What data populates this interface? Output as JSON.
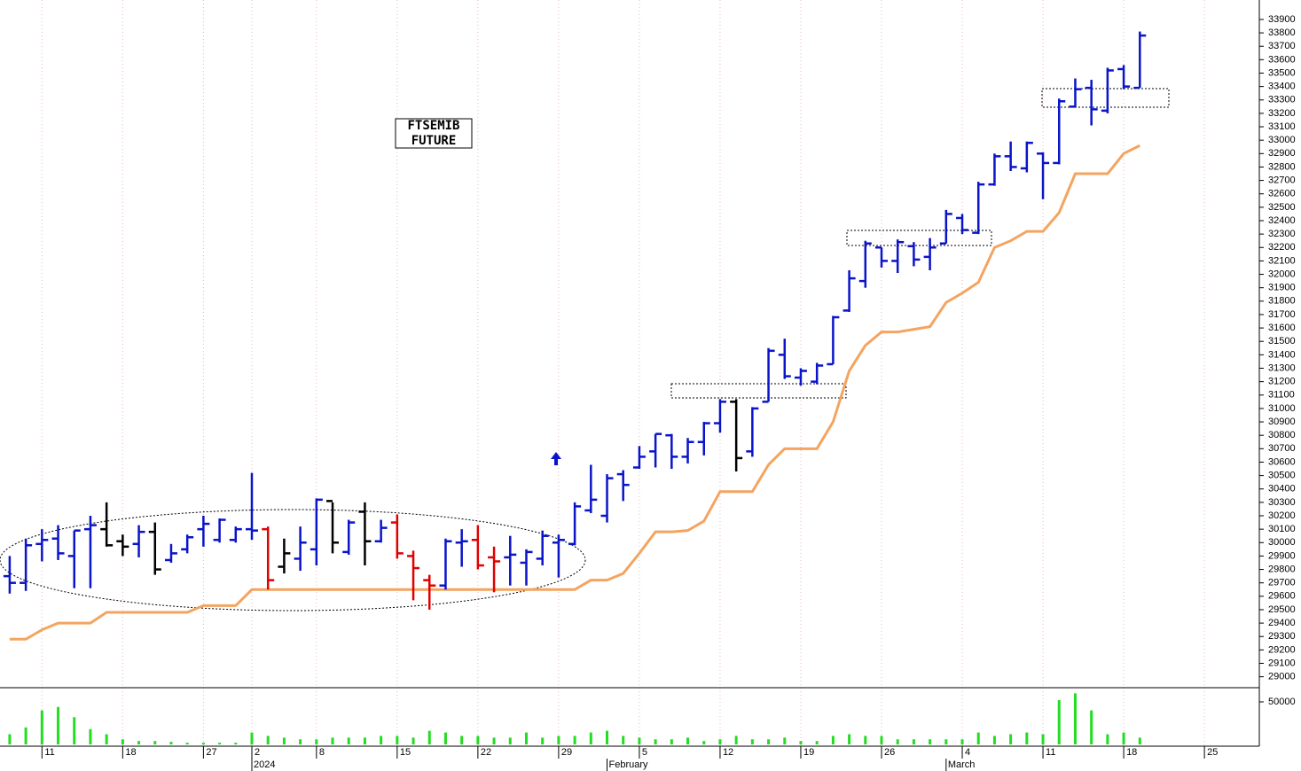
{
  "chart_data": [
    {
      "type": "ohlc",
      "title_lines": [
        "FTSEMIB",
        "FUTURE"
      ],
      "xlim": [
        -0.6,
        77.4
      ],
      "ylim": [
        28925,
        34045
      ],
      "xticks": [
        {
          "value": 2,
          "label": "11"
        },
        {
          "value": 7,
          "label": "18"
        },
        {
          "value": 12,
          "label": "27"
        },
        {
          "value": 15,
          "label": "2"
        },
        {
          "value": 19,
          "label": "8"
        },
        {
          "value": 24,
          "label": "15"
        },
        {
          "value": 29,
          "label": "22"
        },
        {
          "value": 34,
          "label": "29"
        },
        {
          "value": 39,
          "label": "5"
        },
        {
          "value": 44,
          "label": "12"
        },
        {
          "value": 49,
          "label": "19"
        },
        {
          "value": 54,
          "label": "26"
        },
        {
          "value": 59,
          "label": "4"
        },
        {
          "value": 64,
          "label": "11"
        },
        {
          "value": 69,
          "label": "18"
        },
        {
          "value": 74,
          "label": "25"
        }
      ],
      "period_labels": [
        {
          "value": 15,
          "label": "2024"
        },
        {
          "value": 37,
          "label": "February"
        },
        {
          "value": 58,
          "label": "March"
        }
      ],
      "yticks": [
        29000,
        29100,
        29200,
        29300,
        29400,
        29500,
        29600,
        29700,
        29800,
        29900,
        30000,
        30100,
        30200,
        30300,
        30400,
        30500,
        30600,
        30700,
        30800,
        30900,
        31000,
        31100,
        31200,
        31300,
        31400,
        31500,
        31600,
        31700,
        31800,
        31900,
        32000,
        32100,
        32200,
        32300,
        32400,
        32500,
        32600,
        32700,
        32800,
        32900,
        33000,
        33100,
        33200,
        33300,
        33400,
        33500,
        33600,
        33700,
        33800,
        33900
      ],
      "open": [
        29750,
        29700,
        29990,
        30030,
        29900,
        30100,
        30100,
        30010,
        29990,
        30080,
        29870,
        29950,
        30100,
        30020,
        30020,
        30100,
        30100,
        29820,
        29880,
        29950,
        30310,
        29930,
        30230,
        30010,
        30150,
        29900,
        29720,
        29680,
        30000,
        30020,
        29890,
        29890,
        29850,
        29880,
        30000,
        29990,
        30240,
        30200,
        30510,
        30560,
        30680,
        30800,
        30640,
        30750,
        30890,
        31050,
        30680,
        31050,
        31400,
        31230,
        31200,
        31330,
        31730,
        31950,
        32200,
        32100,
        32210,
        32130,
        32230,
        32420,
        32310,
        32670,
        32880,
        32790,
        32900,
        32830,
        33250,
        33390,
        33220,
        33530,
        33390
      ],
      "high": [
        29900,
        30030,
        30100,
        30130,
        30090,
        30200,
        30300,
        30060,
        30130,
        30150,
        29990,
        30060,
        30200,
        30180,
        30120,
        30520,
        30120,
        30030,
        30120,
        30330,
        30300,
        30170,
        30300,
        30170,
        30210,
        29940,
        29760,
        30030,
        30100,
        30130,
        29970,
        30050,
        29950,
        30090,
        30060,
        30300,
        30580,
        30510,
        30540,
        30720,
        30810,
        30810,
        30780,
        30900,
        31070,
        31070,
        31010,
        31450,
        31520,
        31300,
        31340,
        31690,
        32030,
        32250,
        32200,
        32260,
        32240,
        32270,
        32480,
        32450,
        32690,
        32900,
        32990,
        32990,
        32910,
        33310,
        33460,
        33450,
        33540,
        33560,
        33810
      ],
      "low": [
        29620,
        29640,
        29860,
        29870,
        29660,
        29660,
        29970,
        29900,
        29890,
        29760,
        29850,
        29920,
        29970,
        30000,
        30000,
        30020,
        29650,
        29770,
        29790,
        29830,
        29920,
        29910,
        29830,
        30000,
        29880,
        29570,
        29500,
        29650,
        29820,
        29800,
        29630,
        29680,
        29680,
        29830,
        29740,
        29980,
        30220,
        30150,
        30310,
        30550,
        30560,
        30550,
        30590,
        30650,
        30820,
        30530,
        30640,
        31050,
        31220,
        31170,
        31180,
        31330,
        31720,
        31900,
        32050,
        32010,
        32060,
        32030,
        32230,
        32300,
        32300,
        32660,
        32770,
        32760,
        32560,
        32820,
        33250,
        33110,
        33200,
        33380,
        33390
      ],
      "close": [
        29700,
        29980,
        30020,
        29920,
        30090,
        30130,
        29980,
        29970,
        30080,
        29800,
        29920,
        30040,
        30140,
        30170,
        30100,
        30090,
        29720,
        29920,
        30000,
        30320,
        30000,
        30150,
        30010,
        30110,
        29920,
        29810,
        29680,
        30010,
        30010,
        29830,
        29860,
        29910,
        29930,
        30050,
        30020,
        30270,
        30320,
        30480,
        30430,
        30640,
        30810,
        30640,
        30750,
        30890,
        31050,
        30630,
        31000,
        31430,
        31240,
        31280,
        31320,
        31680,
        31970,
        32230,
        32100,
        32240,
        32110,
        32200,
        32450,
        32330,
        32670,
        32880,
        32800,
        32980,
        32830,
        33290,
        33380,
        33230,
        33520,
        33400,
        33780
      ],
      "colors": [
        "#0a14c8",
        "#0a14c8",
        "#0a14c8",
        "#0a14c8",
        "#0a14c8",
        "#0a14c8",
        "#000000",
        "#000000",
        "#0a14c8",
        "#000000",
        "#0a14c8",
        "#0a14c8",
        "#0a14c8",
        "#0a14c8",
        "#0a14c8",
        "#0a14c8",
        "#e00000",
        "#000000",
        "#0a14c8",
        "#0a14c8",
        "#000000",
        "#0a14c8",
        "#000000",
        "#0a14c8",
        "#e00000",
        "#e00000",
        "#e00000",
        "#0a14c8",
        "#0a14c8",
        "#e00000",
        "#e00000",
        "#0a14c8",
        "#0a14c8",
        "#0a14c8",
        "#0a14c8",
        "#0a14c8",
        "#0a14c8",
        "#0a14c8",
        "#0a14c8",
        "#0a14c8",
        "#0a14c8",
        "#0a14c8",
        "#0a14c8",
        "#0a14c8",
        "#0a14c8",
        "#000000",
        "#0a14c8",
        "#0a14c8",
        "#0a14c8",
        "#0a14c8",
        "#0a14c8",
        "#0a14c8",
        "#0a14c8",
        "#0a14c8",
        "#0a14c8",
        "#0a14c8",
        "#0a14c8",
        "#0a14c8",
        "#0a14c8",
        "#0a14c8",
        "#0a14c8",
        "#0a14c8",
        "#0a14c8",
        "#0a14c8",
        "#0a14c8",
        "#0a14c8",
        "#0a14c8",
        "#0a14c8",
        "#0a14c8",
        "#0a14c8",
        "#0a14c8"
      ],
      "line": {
        "color": "#f4a460",
        "values": [
          29280,
          29280,
          29350,
          29400,
          29400,
          29400,
          29480,
          29480,
          29480,
          29480,
          29480,
          29480,
          29530,
          29530,
          29530,
          29650,
          29650,
          29650,
          29650,
          29650,
          29650,
          29650,
          29650,
          29650,
          29650,
          29650,
          29650,
          29650,
          29650,
          29650,
          29650,
          29650,
          29650,
          29650,
          29650,
          29650,
          29720,
          29720,
          29770,
          29920,
          30080,
          30080,
          30090,
          30160,
          30380,
          30380,
          30380,
          30580,
          30700,
          30700,
          30700,
          30900,
          31280,
          31470,
          31570,
          31570,
          31590,
          31610,
          31790,
          31860,
          31940,
          32200,
          32250,
          32320,
          32320,
          32460,
          32750,
          32750,
          32750,
          32900,
          32960
        ]
      }
    },
    {
      "type": "bar",
      "color": "#22dd22",
      "ylim": [
        0,
        65600
      ],
      "yticks": [
        50000
      ],
      "values": [
        12000,
        20000,
        40000,
        44000,
        32000,
        18000,
        12000,
        6000,
        4000,
        4000,
        3000,
        2000,
        2000,
        2000,
        2000,
        14000,
        10000,
        8000,
        6000,
        6000,
        8000,
        8000,
        8000,
        10000,
        10000,
        8000,
        16000,
        14000,
        10000,
        10000,
        8000,
        8000,
        14000,
        8000,
        10000,
        10000,
        14000,
        16000,
        10000,
        8000,
        6000,
        6000,
        8000,
        4000,
        6000,
        10000,
        6000,
        6000,
        8000,
        4000,
        4000,
        10000,
        12000,
        10000,
        10000,
        6000,
        6000,
        6000,
        6000,
        6000,
        14000,
        10000,
        12000,
        14000,
        12000,
        52000,
        60000,
        40000,
        12000,
        14000,
        8000
      ]
    }
  ]
}
